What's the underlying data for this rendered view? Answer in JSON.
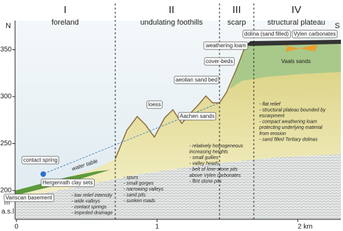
{
  "compass": {
    "left": "N",
    "right": "S"
  },
  "zones": [
    {
      "numeral": "I",
      "name": "foreland"
    },
    {
      "numeral": "II",
      "name": "undulating foothills"
    },
    {
      "numeral": "III",
      "name": "scarp"
    },
    {
      "numeral": "IV",
      "name": "structural plateau"
    }
  ],
  "axes": {
    "y_unit": [
      "m",
      "a.s.l."
    ],
    "yticks": [
      200,
      250,
      300,
      350
    ],
    "xticks": [
      0,
      1,
      {
        "value": 2,
        "label": "2 km"
      }
    ]
  },
  "labels": {
    "contact_spring": "contact spring",
    "clay": "Hergenrath clay sets",
    "basement": "Variscan basement",
    "water_table": "water table",
    "loess": "loess",
    "aachen": "Aachen sands",
    "aeolian": "aeolian sand bed",
    "cover": "cover-beds",
    "loam": "weathering loam",
    "dolina": "dolina (sand filled)",
    "vylen": "Vylen carbonates",
    "vaals": "Vaals sands"
  },
  "notes": {
    "foreland": [
      "- low relief intensity",
      "- wide valleys",
      "- contact springs",
      "- impeded drainage"
    ],
    "foothills_a": [
      "- spurs",
      "- small gorges",
      "- narrowing valleys",
      "- sand pits",
      "- sunken roads"
    ],
    "foothills_b": [
      "- relatively homogeneous",
      "increasing heights",
      "- small gullies",
      "- valley heads",
      "- belt of lime-stone pits",
      "above Vylen carbonates",
      "- flint stone pits"
    ],
    "plateau": [
      "- flat relief",
      "- structural plateau bounded by",
      "escarpment",
      "- compact weathering loam",
      "protecting underlying material",
      "from erosion",
      "- sand filled Tertiary dolinas"
    ]
  }
}
